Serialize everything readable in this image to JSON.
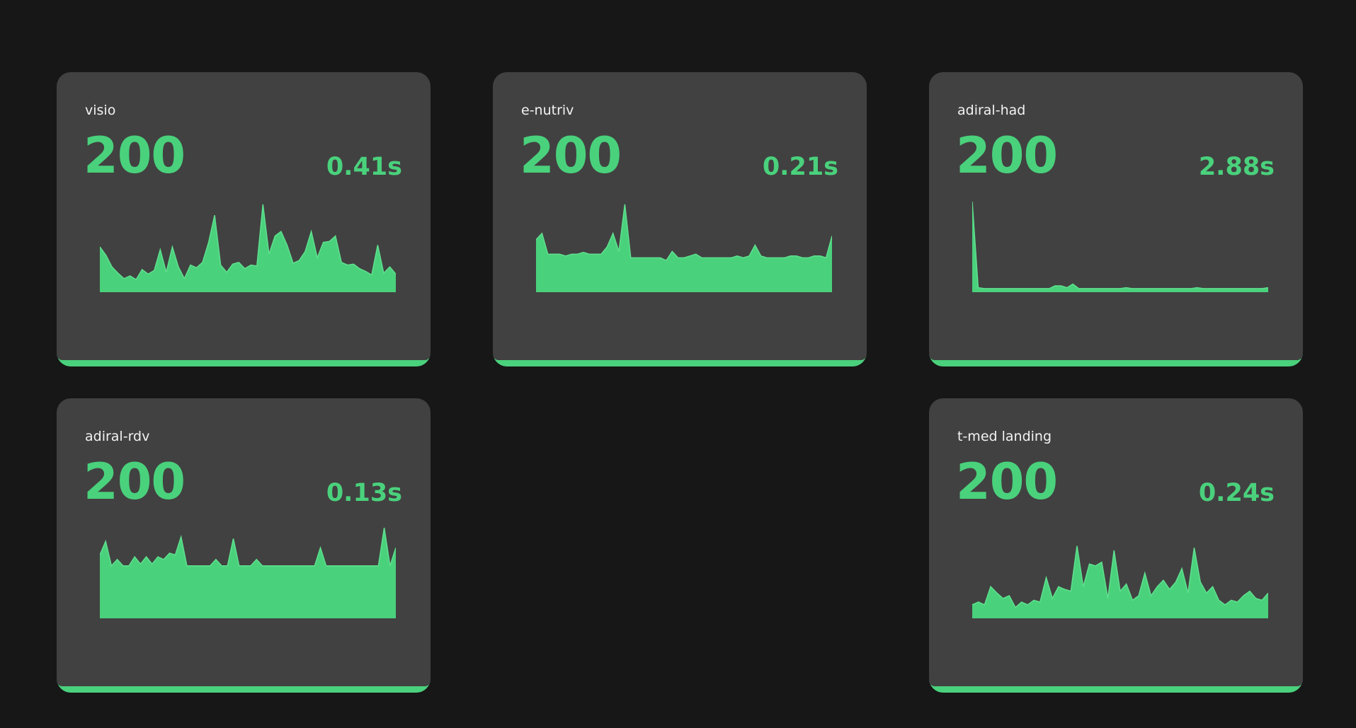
{
  "accent_color": "#4ad17c",
  "monitors": [
    {
      "name": "visio",
      "status": "200",
      "response_time": "0.41s",
      "history": [
        0.5,
        0.41,
        0.28,
        0.21,
        0.15,
        0.18,
        0.14,
        0.25,
        0.2,
        0.24,
        0.47,
        0.22,
        0.5,
        0.28,
        0.15,
        0.3,
        0.27,
        0.33,
        0.55,
        0.85,
        0.3,
        0.22,
        0.31,
        0.33,
        0.26,
        0.3,
        0.29,
        0.97,
        0.42,
        0.62,
        0.67,
        0.52,
        0.32,
        0.35,
        0.45,
        0.67,
        0.38,
        0.55,
        0.56,
        0.62,
        0.33,
        0.3,
        0.31,
        0.26,
        0.23,
        0.19,
        0.52,
        0.21,
        0.28,
        0.2
      ]
    },
    {
      "name": "e-nutriv",
      "status": "200",
      "response_time": "0.21s",
      "history": [
        0.58,
        0.65,
        0.42,
        0.42,
        0.42,
        0.4,
        0.42,
        0.42,
        0.44,
        0.42,
        0.42,
        0.42,
        0.5,
        0.65,
        0.45,
        0.97,
        0.38,
        0.38,
        0.38,
        0.38,
        0.38,
        0.38,
        0.35,
        0.45,
        0.38,
        0.38,
        0.4,
        0.42,
        0.38,
        0.38,
        0.38,
        0.38,
        0.38,
        0.38,
        0.4,
        0.38,
        0.4,
        0.52,
        0.4,
        0.38,
        0.38,
        0.38,
        0.38,
        0.4,
        0.4,
        0.38,
        0.38,
        0.4,
        0.4,
        0.38,
        0.62
      ]
    },
    {
      "name": "adiral-had",
      "status": "200",
      "response_time": "2.88s",
      "history": [
        1.0,
        0.05,
        0.04,
        0.04,
        0.04,
        0.04,
        0.04,
        0.04,
        0.04,
        0.04,
        0.04,
        0.04,
        0.04,
        0.04,
        0.07,
        0.07,
        0.05,
        0.09,
        0.04,
        0.04,
        0.04,
        0.04,
        0.04,
        0.04,
        0.04,
        0.04,
        0.05,
        0.04,
        0.04,
        0.04,
        0.04,
        0.04,
        0.04,
        0.04,
        0.04,
        0.04,
        0.04,
        0.04,
        0.05,
        0.04,
        0.04,
        0.04,
        0.04,
        0.04,
        0.04,
        0.04,
        0.04,
        0.04,
        0.04,
        0.04,
        0.05
      ]
    },
    {
      "name": "adiral-rdv",
      "status": "200",
      "response_time": "0.13s",
      "history": [
        0.7,
        0.85,
        0.58,
        0.65,
        0.58,
        0.58,
        0.68,
        0.6,
        0.68,
        0.6,
        0.68,
        0.65,
        0.72,
        0.7,
        0.9,
        0.58,
        0.58,
        0.58,
        0.58,
        0.58,
        0.65,
        0.58,
        0.58,
        0.88,
        0.58,
        0.58,
        0.58,
        0.65,
        0.58,
        0.58,
        0.58,
        0.58,
        0.58,
        0.58,
        0.58,
        0.58,
        0.58,
        0.58,
        0.78,
        0.58,
        0.58,
        0.58,
        0.58,
        0.58,
        0.58,
        0.58,
        0.58,
        0.58,
        0.58,
        1.0,
        0.58,
        0.78
      ]
    },
    {
      "name": "t-med landing",
      "status": "200",
      "response_time": "0.24s",
      "history": [
        0.15,
        0.18,
        0.15,
        0.35,
        0.28,
        0.22,
        0.25,
        0.12,
        0.18,
        0.15,
        0.2,
        0.18,
        0.45,
        0.22,
        0.35,
        0.32,
        0.3,
        0.8,
        0.35,
        0.6,
        0.58,
        0.62,
        0.22,
        0.75,
        0.3,
        0.38,
        0.2,
        0.25,
        0.5,
        0.25,
        0.35,
        0.42,
        0.32,
        0.4,
        0.55,
        0.28,
        0.78,
        0.4,
        0.28,
        0.35,
        0.2,
        0.15,
        0.2,
        0.18,
        0.25,
        0.3,
        0.22,
        0.2,
        0.28
      ]
    }
  ]
}
